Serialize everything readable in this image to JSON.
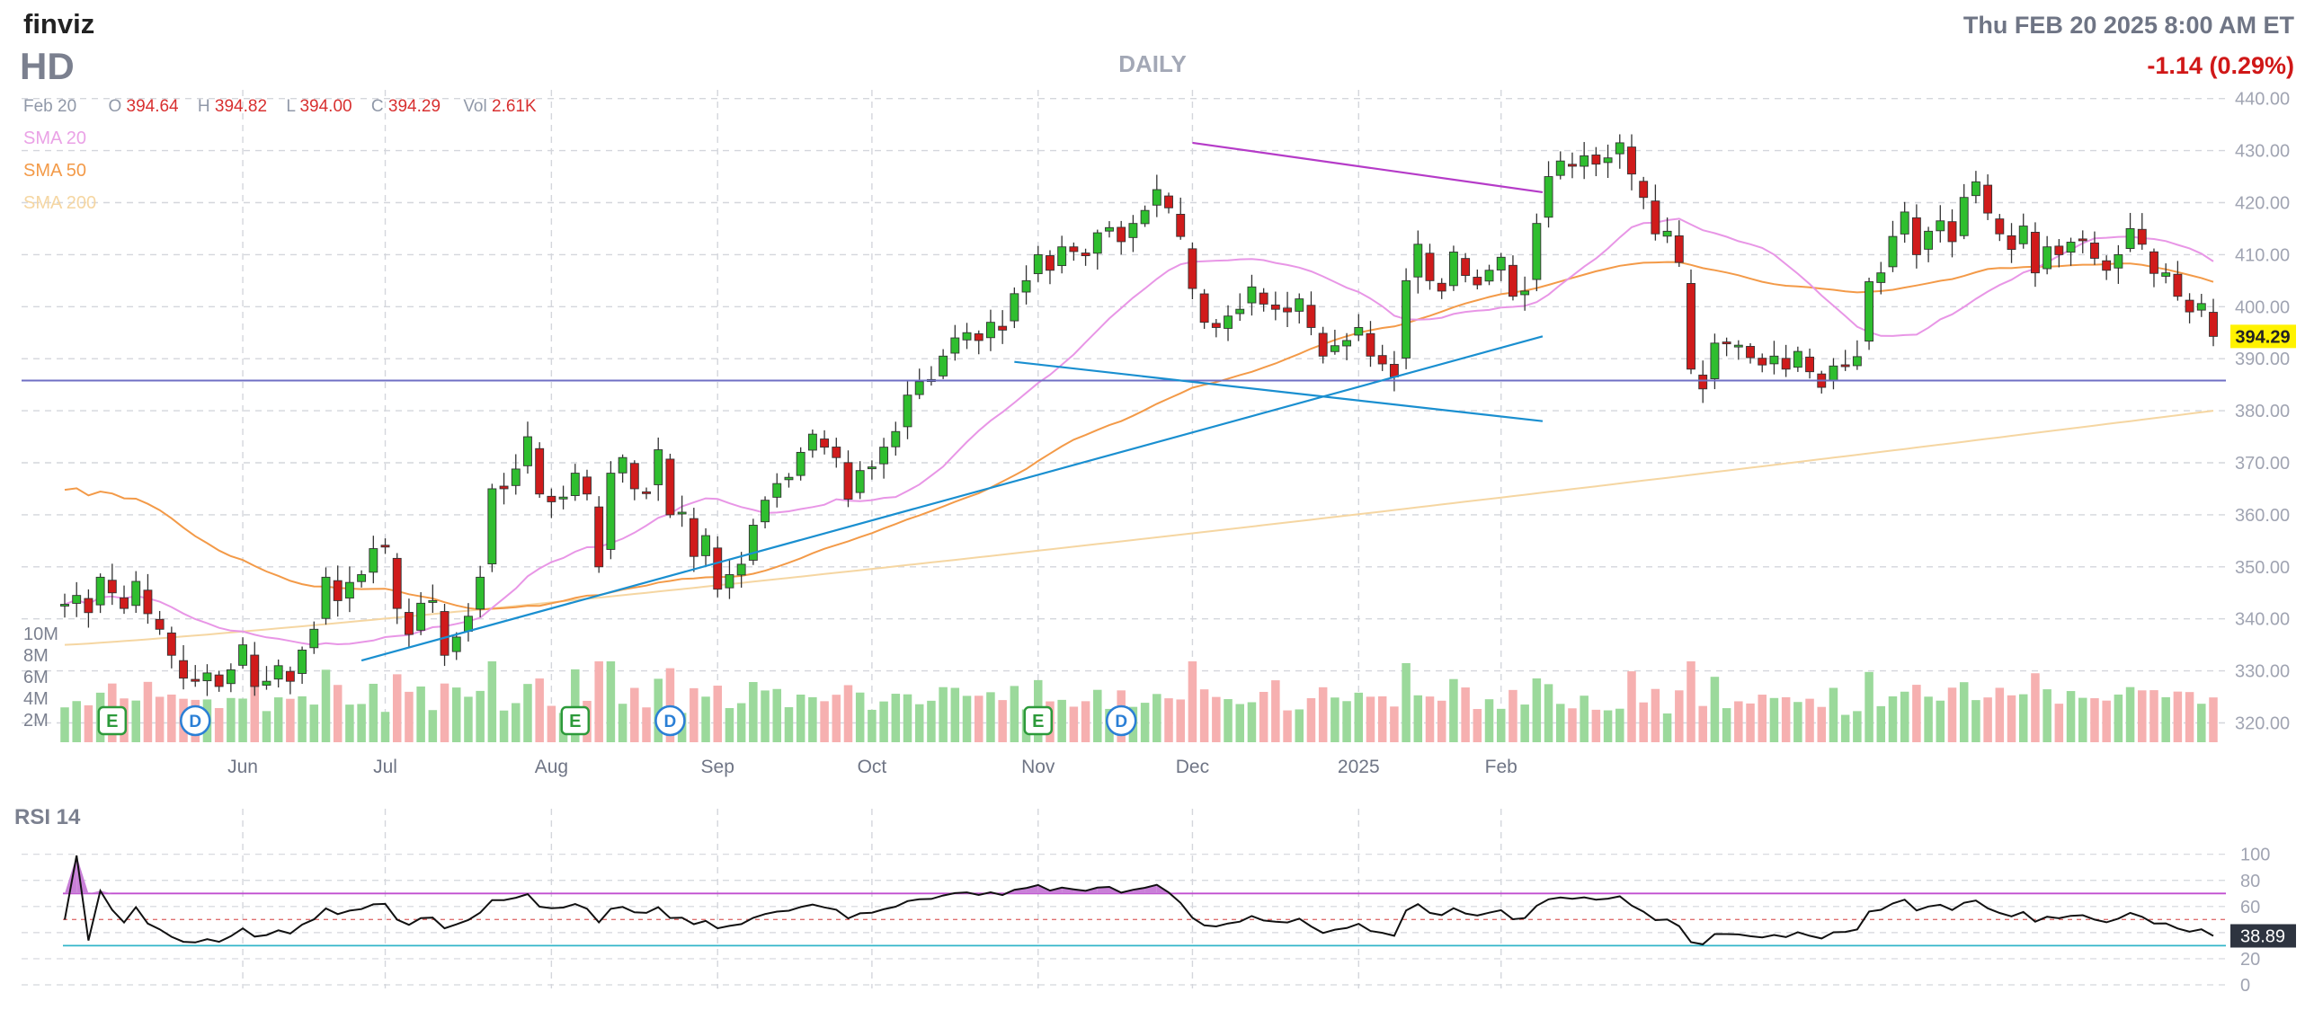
{
  "header": {
    "logo": "finviz",
    "ticker": "HD",
    "timeframe": "DAILY",
    "datetime": "Thu FEB 20 2025 8:00 AM ET",
    "change": "-1.14 (0.29%)"
  },
  "ohlc": {
    "date": "Feb 20",
    "o_label": "O",
    "o": "394.64",
    "h_label": "H",
    "h": "394.82",
    "l_label": "L",
    "l": "394.00",
    "c_label": "C",
    "c": "394.29",
    "vol_label": "Vol",
    "vol": "2.61K"
  },
  "legend": [
    "SMA 20",
    "SMA 50",
    "SMA 200"
  ],
  "price_label": "394.29",
  "rsi": {
    "title": "RSI 14",
    "value_label": "38.89"
  },
  "colors": {
    "up": "#2fbe2f",
    "down": "#d01b1b",
    "vol_up": "#9bd99b",
    "vol_down": "#f6b0b0",
    "sma20": "#e896e6",
    "sma50": "#f39a48",
    "sma200": "#f5d6a2",
    "trend_blue": "#1a8fd0",
    "trend_purple": "#b53bc8",
    "support": "#6f6fc4",
    "rsi_upper": "#c04fd0",
    "rsi_lower": "#33b5c9",
    "price_tag": "#fff200",
    "text_grey": "#8a8fa0",
    "red": "#d01818"
  },
  "chart_data": [
    {
      "type": "candlestick",
      "title": "HD",
      "ylim": [
        315,
        443
      ],
      "y_ticks": [
        320,
        330,
        340,
        350,
        360,
        370,
        380,
        390,
        400,
        410,
        420,
        430,
        440
      ],
      "x_labels": [
        "Jun",
        "Jul",
        "Aug",
        "Sep",
        "Oct",
        "Nov",
        "Dec",
        "2025",
        "Feb"
      ],
      "x_label_index": [
        15,
        27,
        41,
        55,
        68,
        82,
        95,
        109,
        121
      ],
      "horizontal_line": 385.8,
      "trendlines": [
        {
          "x1": 25,
          "y1": 332.0,
          "x2": 124.5,
          "y2": 394.3,
          "color": "trend_blue"
        },
        {
          "x1": 80,
          "y1": 389.4,
          "x2": 124.5,
          "y2": 378.0,
          "color": "trend_blue"
        },
        {
          "x1": 95,
          "y1": 431.5,
          "x2": 124.5,
          "y2": 422.0,
          "color": "trend_purple"
        }
      ],
      "events": [
        {
          "i": 4,
          "label": "E"
        },
        {
          "i": 11,
          "label": "D"
        },
        {
          "i": 43,
          "label": "E"
        },
        {
          "i": 51,
          "label": "D"
        },
        {
          "i": 82,
          "label": "E"
        },
        {
          "i": 89,
          "label": "D"
        }
      ],
      "volume_ticks": [
        "10M",
        "8M",
        "6M",
        "4M",
        "2M"
      ],
      "close": [
        342.8,
        344.5,
        341.2,
        348.0,
        345.0,
        342.0,
        347.2,
        341.0,
        338.0,
        333.0,
        328.6,
        328.0,
        329.6,
        327.0,
        330.2,
        335.0,
        327.0,
        328.0,
        331.0,
        328.0,
        334.0,
        338.0,
        348.0,
        343.5,
        347.0,
        348.5,
        353.5,
        354.0,
        342.0,
        337.0,
        343.0,
        343.5,
        333.0,
        336.5,
        340.5,
        348.0,
        365.0,
        365.0,
        368.8,
        375.0,
        364.0,
        362.5,
        363.4,
        368.0,
        364.0,
        350.0,
        368.0,
        371.0,
        365.0,
        364.4,
        372.5,
        360.0,
        360.5,
        352.0,
        356.0,
        345.7,
        348.5,
        350.5,
        358.0,
        362.8,
        366.0,
        367.2,
        372.0,
        375.5,
        373.0,
        371.0,
        363.0,
        368.5,
        369.2,
        373.0,
        376.0,
        383.0,
        385.6,
        386.0,
        390.5,
        394.0,
        395.0,
        393.5,
        397.0,
        395.5,
        402.5,
        405.0,
        410.0,
        407.0,
        411.5,
        410.6,
        409.8,
        414.2,
        415.2,
        412.5,
        416.0,
        418.5,
        422.5,
        419.0,
        413.5,
        403.5,
        397.0,
        396.0,
        398.2,
        399.5,
        403.8,
        400.5,
        399.5,
        399.0,
        401.5,
        396.0,
        390.5,
        392.5,
        393.5,
        396.0,
        390.5,
        389.0,
        386.5,
        405.0,
        412.0,
        405.0,
        403.0,
        410.5,
        406.0,
        404.2,
        407.0,
        409.5,
        402.0,
        403.0,
        416.0,
        425.0,
        428.0,
        427.0,
        429.0,
        427.4,
        428.6,
        431.5,
        425.5,
        421.0,
        414.0,
        414.5,
        408.5,
        388.0,
        384.2,
        393.0,
        393.0,
        392.6,
        390.2,
        388.8,
        390.5,
        388.0,
        391.4,
        387.5,
        384.5,
        388.6,
        388.8,
        390.4,
        404.8,
        406.5,
        413.5,
        418.2,
        410.0,
        414.5,
        416.5,
        412.5,
        421.0,
        424.0,
        418.0,
        414.0,
        411.0,
        415.5,
        406.5,
        411.5,
        410.0,
        412.4,
        413.0,
        409.3,
        407.0,
        410.0,
        415.0,
        412.0,
        406.4,
        406.5,
        402.0,
        399.0,
        400.6,
        394.29
      ]
    },
    {
      "type": "line",
      "title": "RSI 14",
      "ylim": [
        0,
        100
      ],
      "y_ticks": [
        0,
        20,
        40,
        60,
        80,
        100
      ],
      "levels": [
        70,
        50,
        30
      ]
    }
  ]
}
